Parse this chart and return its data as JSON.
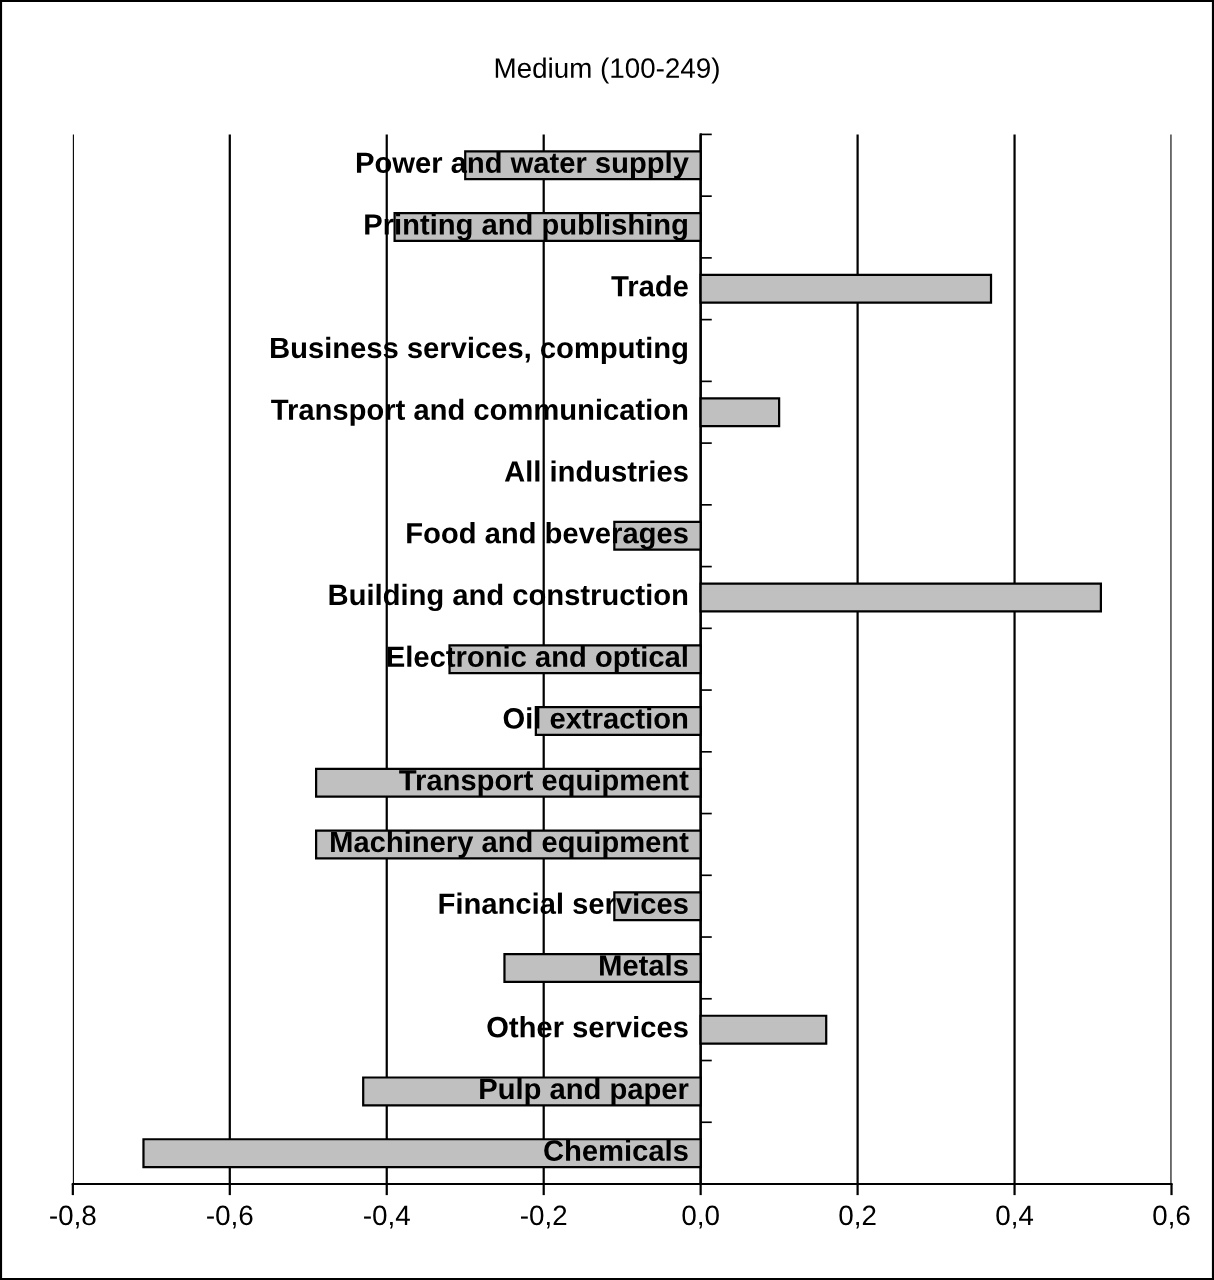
{
  "chart_data": {
    "type": "bar",
    "orientation": "horizontal",
    "title": "Medium (100-249)",
    "categories": [
      "Power and water supply",
      "Printing and publishing",
      "Trade",
      "Business services, computing",
      "Transport and communication",
      "All industries",
      "Food and beverages",
      "Building and construction",
      "Electronic and optical",
      "Oil extraction",
      "Transport equipment",
      "Machinery and equipment",
      "Financial services",
      "Metals",
      "Other services",
      "Pulp and paper",
      "Chemicals"
    ],
    "values": [
      -0.3,
      -0.39,
      0.37,
      0,
      0.1,
      0,
      -0.11,
      0.51,
      -0.32,
      -0.21,
      -0.49,
      -0.49,
      -0.11,
      -0.25,
      0.16,
      -0.43,
      -0.71
    ],
    "color": "#c0c0c0",
    "xlim": [
      -0.8,
      0.6
    ],
    "xticks": [
      {
        "value": -0.8,
        "label": "-0,8"
      },
      {
        "value": -0.6,
        "label": "-0,6"
      },
      {
        "value": -0.4,
        "label": "-0,4"
      },
      {
        "value": -0.2,
        "label": "-0,2"
      },
      {
        "value": 0,
        "label": "0,0"
      },
      {
        "value": 0.2,
        "label": "0,2"
      },
      {
        "value": 0.4,
        "label": "0,4"
      },
      {
        "value": 0.6,
        "label": "0,6"
      }
    ],
    "grid": "x"
  }
}
